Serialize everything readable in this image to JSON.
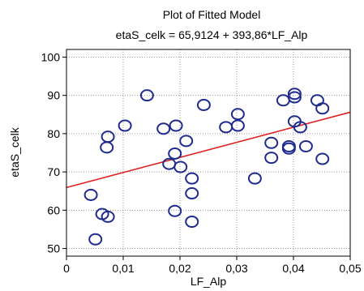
{
  "chart_data": {
    "type": "scatter",
    "title": "Plot of Fitted Model",
    "subtitle": "etaS_celk = 65,9124 + 393,86*LF_Alp",
    "xlabel": "LF_Alp",
    "ylabel": "etaS_celk",
    "xlim": [
      0,
      0.05
    ],
    "ylim": [
      48,
      102
    ],
    "x_ticks": [
      0,
      0.01,
      0.02,
      0.03,
      0.04,
      0.05
    ],
    "x_tick_labels": [
      "0",
      "0,01",
      "0,02",
      "0,03",
      "0,04",
      "0,05"
    ],
    "y_ticks": [
      50,
      60,
      70,
      80,
      90,
      100
    ],
    "y_tick_labels": [
      "50",
      "60",
      "70",
      "80",
      "90",
      "100"
    ],
    "grid": true,
    "marker_color": "#1f2a8f",
    "line_color": "#e02020",
    "fit": {
      "intercept": 65.9124,
      "slope": 393.86
    },
    "points": [
      {
        "x": 0.0043,
        "y": 64.0
      },
      {
        "x": 0.0051,
        "y": 52.4
      },
      {
        "x": 0.0063,
        "y": 59.0
      },
      {
        "x": 0.0073,
        "y": 79.2
      },
      {
        "x": 0.0071,
        "y": 76.4
      },
      {
        "x": 0.0073,
        "y": 58.3
      },
      {
        "x": 0.0103,
        "y": 82.1
      },
      {
        "x": 0.0142,
        "y": 90.0
      },
      {
        "x": 0.0171,
        "y": 81.3
      },
      {
        "x": 0.0181,
        "y": 72.1
      },
      {
        "x": 0.0191,
        "y": 74.8
      },
      {
        "x": 0.0193,
        "y": 82.1
      },
      {
        "x": 0.0191,
        "y": 59.8
      },
      {
        "x": 0.0201,
        "y": 71.3
      },
      {
        "x": 0.0211,
        "y": 78.1
      },
      {
        "x": 0.0221,
        "y": 68.3
      },
      {
        "x": 0.0221,
        "y": 64.4
      },
      {
        "x": 0.0221,
        "y": 57.0
      },
      {
        "x": 0.0242,
        "y": 87.5
      },
      {
        "x": 0.0281,
        "y": 81.7
      },
      {
        "x": 0.0302,
        "y": 85.1
      },
      {
        "x": 0.0302,
        "y": 82.1
      },
      {
        "x": 0.0332,
        "y": 68.3
      },
      {
        "x": 0.0361,
        "y": 77.6
      },
      {
        "x": 0.0361,
        "y": 73.7
      },
      {
        "x": 0.0382,
        "y": 88.7
      },
      {
        "x": 0.0392,
        "y": 76.7
      },
      {
        "x": 0.0392,
        "y": 76.1
      },
      {
        "x": 0.0402,
        "y": 90.4
      },
      {
        "x": 0.0402,
        "y": 89.5
      },
      {
        "x": 0.0402,
        "y": 83.2
      },
      {
        "x": 0.0412,
        "y": 81.7
      },
      {
        "x": 0.0422,
        "y": 76.7
      },
      {
        "x": 0.0442,
        "y": 88.7
      },
      {
        "x": 0.0451,
        "y": 86.6
      },
      {
        "x": 0.0451,
        "y": 73.4
      }
    ]
  }
}
